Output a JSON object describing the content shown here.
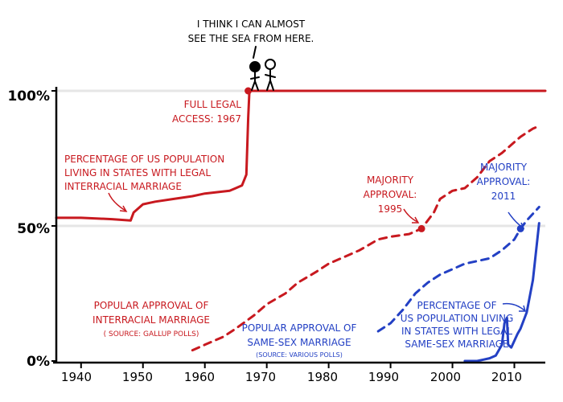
{
  "chart_data": {
    "type": "line",
    "title": "",
    "xlabel": "",
    "ylabel": "",
    "xlim": [
      1936,
      2015
    ],
    "ylim": [
      0,
      100
    ],
    "x_ticks": [
      "1940",
      "1950",
      "1960",
      "1970",
      "1980",
      "1990",
      "2000",
      "2010"
    ],
    "y_ticks": [
      "0%",
      "50%",
      "100%"
    ],
    "colors": {
      "interracial": "#c8191f",
      "samesex": "#2340c4"
    },
    "series": [
      {
        "style": "solid",
        "color_key": "interracial",
        "x": [
          1936,
          1940,
          1945,
          1948,
          1948.5,
          1950,
          1952,
          1955,
          1958,
          1960,
          1962,
          1964,
          1965,
          1966,
          1966.7,
          1967,
          1967.2,
          1970,
          1980,
          1990,
          2000,
          2010,
          2015
        ],
        "values": [
          53,
          53,
          52.5,
          52,
          55,
          58,
          59,
          60,
          61,
          62,
          62.5,
          63,
          64,
          65,
          69,
          90,
          100,
          100,
          100,
          100,
          100,
          100,
          100
        ]
      },
      {
        "style": "dashed",
        "color_key": "interracial",
        "x": [
          1958,
          1960,
          1963,
          1965,
          1968,
          1970,
          1973,
          1975,
          1978,
          1980,
          1983,
          1985,
          1988,
          1990,
          1993,
          1995,
          1997,
          1998,
          2000,
          2002,
          2004,
          2006,
          2008,
          2011,
          2013,
          2014
        ],
        "values": [
          4,
          6,
          9,
          12,
          17,
          21,
          25,
          29,
          33,
          36,
          39,
          41,
          45,
          46,
          47,
          49,
          55,
          60,
          63,
          64,
          68,
          74,
          77,
          83,
          86,
          87
        ]
      },
      {
        "style": "dashed",
        "color_key": "samesex",
        "x": [
          1988,
          1990,
          1992,
          1994,
          1996,
          1998,
          2000,
          2002,
          2004,
          2006,
          2008,
          2010,
          2011,
          2012,
          2014
        ],
        "values": [
          11,
          14,
          19,
          25,
          29,
          32,
          34,
          36,
          37,
          38,
          41,
          45,
          49,
          52,
          57
        ]
      },
      {
        "style": "solid",
        "color_key": "samesex",
        "x": [
          2002,
          2004,
          2005,
          2006,
          2007,
          2008,
          2008.4,
          2008.8,
          2009,
          2009.5,
          2010.5,
          2011,
          2012,
          2013,
          2014
        ],
        "values": [
          0,
          0,
          0.5,
          1,
          2,
          6,
          14,
          16,
          6,
          5,
          10,
          12,
          18,
          30,
          51
        ]
      }
    ],
    "markers": [
      {
        "x": 1967,
        "y": 100,
        "color_key": "interracial"
      },
      {
        "x": 1995,
        "y": 49,
        "color_key": "interracial"
      },
      {
        "x": 2011,
        "y": 49,
        "color_key": "samesex"
      }
    ],
    "annotations": {
      "speech": [
        "I THINK I CAN ALMOST",
        "SEE THE SEA FROM HERE."
      ],
      "full_legal": [
        "FULL LEGAL",
        "ACCESS: 1967"
      ],
      "interracial_pop": [
        "PERCENTAGE OF US POPULATION",
        "LIVING IN STATES WITH LEGAL",
        "INTERRACIAL MARRIAGE"
      ],
      "majority_1995": [
        "MAJORITY",
        "APPROVAL:",
        "1995"
      ],
      "majority_2011": [
        "MAJORITY",
        "APPROVAL:",
        "2011"
      ],
      "interracial_approval": [
        "POPULAR APPROVAL OF",
        "INTERRACIAL MARRIAGE"
      ],
      "gallup": "( SOURCE: GALLUP POLLS)",
      "samesex_approval": [
        "POPULAR APPROVAL OF",
        "SAME-SEX MARRIAGE"
      ],
      "various": "(SOURCE: VARIOUS POLLS)",
      "samesex_pop": [
        "PERCENTAGE OF",
        "US POPULATION LIVING",
        "IN STATES WITH LEGAL",
        "SAME-SEX MARRIAGE"
      ]
    }
  }
}
